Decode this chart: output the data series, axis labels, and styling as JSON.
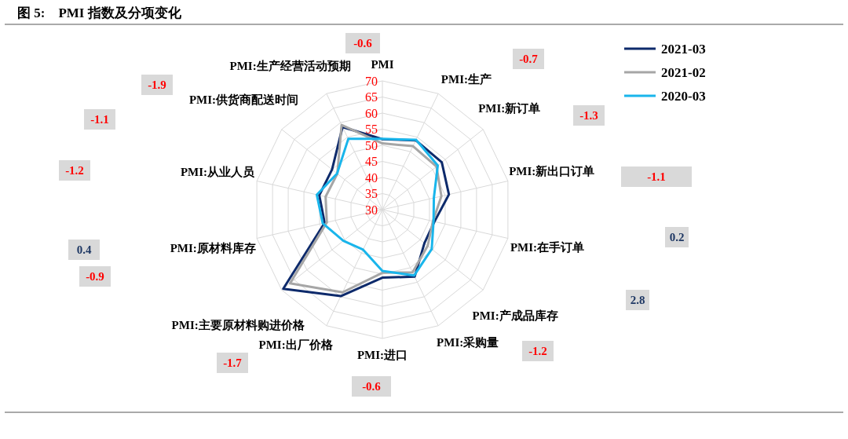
{
  "chart_data": {
    "type": "radar",
    "title": "图 5:    PMI 指数及分项变化",
    "categories": [
      "PMI",
      "PMI:生产",
      "PMI:新订单",
      "PMI:新出口订单",
      "PMI:在手订单",
      "PMI:产成品库存",
      "PMI:采购量",
      "PMI:进口",
      "PMI:出厂价格",
      "PMI:主要原材料购进价格",
      "PMI:原材料库存",
      "PMI:从业人员",
      "PMI:供货商配送时间",
      "PMI:生产经营活动预期"
    ],
    "series": [
      {
        "name": "2021-03",
        "color": "#0d2a6b",
        "values": [
          51.9,
          53.9,
          53.6,
          51.2,
          46.6,
          46.7,
          53.1,
          51.1,
          59.8,
          69.4,
          48.4,
          50.1,
          50.0,
          58.5
        ]
      },
      {
        "name": "2021-02",
        "color": "#a6a6a6",
        "values": [
          50.6,
          51.9,
          51.5,
          48.8,
          46.1,
          48.0,
          51.6,
          49.6,
          58.5,
          66.7,
          47.7,
          48.1,
          47.9,
          59.2
        ]
      },
      {
        "name": "2020-03",
        "color": "#19b5eb",
        "values": [
          52.0,
          54.1,
          52.0,
          46.4,
          46.3,
          49.6,
          52.7,
          49.0,
          43.8,
          45.5,
          49.0,
          50.9,
          48.0,
          54.4
        ]
      }
    ],
    "ylim": [
      30,
      70
    ],
    "yticks": [
      30,
      35,
      40,
      45,
      50,
      55,
      60,
      65,
      70
    ],
    "grid": true,
    "legend": "top right",
    "annotations": [
      "-0.6",
      "-0.7",
      "-1.3",
      "-1.1",
      "0.2",
      "2.8",
      "-1.2",
      "-0.6",
      "-1.7",
      "-0.9",
      "0.4",
      "-1.2",
      "-1.1",
      "-1.9"
    ]
  }
}
